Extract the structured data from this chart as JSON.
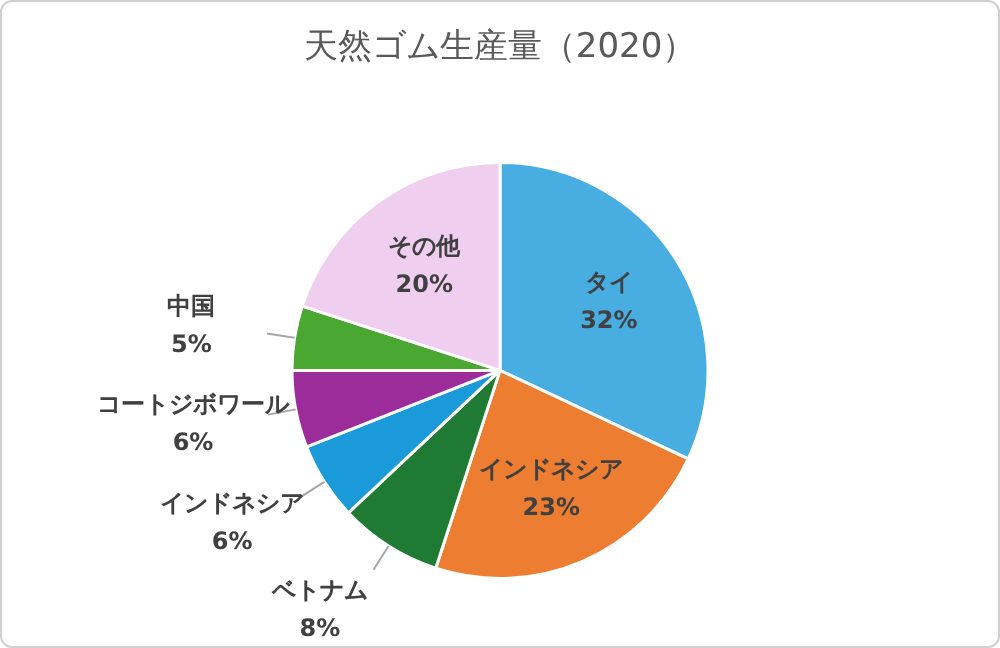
{
  "chart_data": {
    "type": "pie",
    "title": "天然ゴム生産量（2020）",
    "categories": [
      "タイ",
      "インドネシア",
      "ベトナム",
      "インドネシア",
      "コートジボワール",
      "中国",
      "その他"
    ],
    "values": [
      32,
      23,
      8,
      6,
      6,
      5,
      20
    ],
    "value_labels": [
      "32%",
      "23%",
      "8%",
      "6%",
      "6%",
      "5%",
      "20%"
    ],
    "colors": [
      "#48ade0",
      "#ed7d31",
      "#1f7a33",
      "#1a9ad8",
      "#9b2c99",
      "#4aa832",
      "#f0cef0"
    ],
    "legend": false
  }
}
